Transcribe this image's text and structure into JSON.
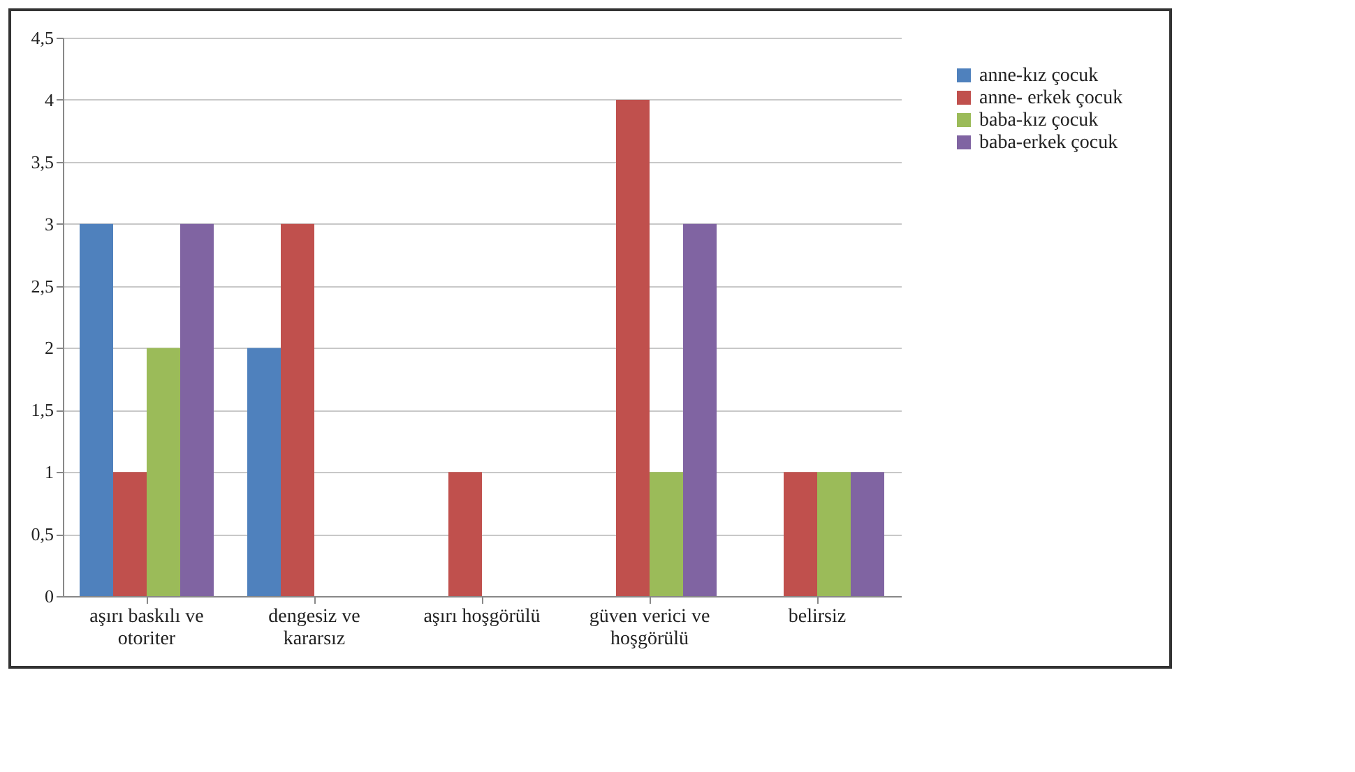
{
  "chart_data": {
    "type": "bar",
    "categories": [
      "aşırı baskılı ve otoriter",
      "dengesiz ve kararsız",
      "aşırı hoşgörülü",
      "güven verici ve hoşgörülü",
      "belirsiz"
    ],
    "series": [
      {
        "name": "anne-kız çocuk",
        "color": "#4f81bd",
        "values": [
          3,
          2,
          0,
          0,
          0
        ]
      },
      {
        "name": "anne- erkek çocuk",
        "color": "#c0504d",
        "values": [
          1,
          3,
          1,
          4,
          1
        ]
      },
      {
        "name": "baba-kız çocuk",
        "color": "#9bbb59",
        "values": [
          2,
          0,
          0,
          1,
          1
        ]
      },
      {
        "name": "baba-erkek çocuk",
        "color": "#8064a2",
        "values": [
          3,
          0,
          0,
          3,
          1
        ]
      }
    ],
    "ylim": [
      0,
      4.5
    ],
    "yticks": [
      0,
      {
        "value": 0.5,
        "label": "0,5"
      },
      1,
      {
        "value": 1.5,
        "label": "1,5"
      },
      2,
      {
        "value": 2.5,
        "label": "2,5"
      },
      3,
      {
        "value": 3.5,
        "label": "3,5"
      },
      4,
      {
        "value": 4.5,
        "label": "4,5"
      }
    ],
    "grid": "y",
    "legend": "right"
  }
}
